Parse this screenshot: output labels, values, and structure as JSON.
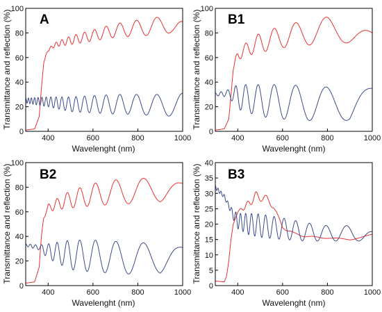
{
  "chart_data": [
    {
      "type": "line",
      "panel_label": "A",
      "xlabel": "Wavelenght (nm)",
      "ylabel": "Transmittance and reflection (%)",
      "xlim": [
        300,
        1000
      ],
      "ylim": [
        0,
        100
      ],
      "xticks": [
        400,
        600,
        800,
        1000
      ],
      "yticks": [
        0,
        20,
        40,
        60,
        80,
        100
      ],
      "colors": {
        "transmittance": "#e8312f",
        "reflection": "#3b4a8a"
      },
      "series": [
        {
          "key": "transmittance",
          "x": [
            300,
            340,
            360,
            370,
            380,
            390,
            400,
            420,
            440,
            460,
            480,
            500,
            550,
            600,
            650,
            700,
            750,
            800,
            850,
            900,
            950,
            1000
          ],
          "y": [
            1,
            2,
            12,
            35,
            55,
            62,
            66,
            69,
            71,
            72,
            73,
            74,
            76,
            78,
            80,
            82,
            83,
            84,
            85,
            86,
            87,
            82
          ],
          "osc_amp": [
            0,
            0,
            0,
            0,
            0,
            0,
            1,
            1.5,
            2,
            2.5,
            3,
            3.5,
            4,
            4.5,
            5,
            5.5,
            6,
            6.5,
            7,
            7,
            7,
            7
          ],
          "osc_periods": 18
        },
        {
          "key": "reflection",
          "x": [
            300,
            400,
            500,
            600,
            700,
            800,
            900,
            1000
          ],
          "y": [
            25,
            24,
            22,
            22,
            22,
            22,
            21,
            22
          ],
          "osc_amp": [
            2,
            4,
            6,
            7,
            8,
            8,
            9,
            9
          ],
          "osc_periods": 18
        }
      ]
    },
    {
      "type": "line",
      "panel_label": "B1",
      "xlabel": "Wavelenght (nm)",
      "ylabel": "Transmittance and reflection (%)",
      "xlim": [
        300,
        1000
      ],
      "ylim": [
        0,
        100
      ],
      "xticks": [
        400,
        600,
        800,
        1000
      ],
      "yticks": [
        0,
        20,
        40,
        60,
        80,
        100
      ],
      "colors": {
        "transmittance": "#e8312f",
        "reflection": "#3b4a8a"
      },
      "series": [
        {
          "key": "transmittance",
          "x": [
            300,
            340,
            360,
            370,
            380,
            390,
            400,
            450,
            500,
            600,
            700,
            800,
            900,
            1000
          ],
          "y": [
            1,
            2,
            10,
            30,
            50,
            58,
            62,
            68,
            72,
            77,
            80,
            82,
            82,
            76
          ],
          "osc_amp": [
            0,
            0,
            0,
            0,
            0,
            2,
            4,
            6,
            8,
            9,
            10,
            11,
            10,
            4
          ],
          "osc_periods": 9
        },
        {
          "key": "reflection",
          "x": [
            300,
            360,
            400,
            500,
            600,
            700,
            800,
            900,
            1000
          ],
          "y": [
            30,
            31,
            28,
            25,
            24,
            23,
            22,
            22,
            33
          ],
          "osc_amp": [
            1,
            3,
            10,
            13,
            14,
            14,
            14,
            13,
            2
          ],
          "osc_periods": 9
        }
      ]
    },
    {
      "type": "line",
      "panel_label": "B2",
      "xlabel": "Wavelenght (nm)",
      "ylabel": "Transmittance and reflection (%)",
      "xlim": [
        300,
        1000
      ],
      "ylim": [
        0,
        100
      ],
      "xticks": [
        400,
        600,
        800,
        1000
      ],
      "yticks": [
        0,
        20,
        40,
        60,
        80,
        100
      ],
      "colors": {
        "transmittance": "#e8312f",
        "reflection": "#3b4a8a"
      },
      "series": [
        {
          "key": "transmittance",
          "x": [
            300,
            340,
            360,
            370,
            380,
            390,
            400,
            450,
            500,
            600,
            700,
            800,
            900,
            1000
          ],
          "y": [
            2,
            3,
            15,
            40,
            55,
            60,
            63,
            67,
            70,
            74,
            76,
            77,
            78,
            82
          ],
          "osc_amp": [
            0,
            0,
            0,
            0,
            1,
            2,
            3,
            5,
            7,
            9,
            10,
            10,
            10,
            1
          ],
          "osc_periods": 11
        },
        {
          "key": "reflection",
          "x": [
            300,
            360,
            400,
            500,
            600,
            700,
            800,
            900,
            1000
          ],
          "y": [
            33,
            31,
            28,
            25,
            24,
            23,
            22,
            22,
            30
          ],
          "osc_amp": [
            1,
            2,
            6,
            12,
            13,
            13,
            13,
            12,
            1
          ],
          "osc_periods": 11
        }
      ]
    },
    {
      "type": "line",
      "panel_label": "B3",
      "xlabel": "Wavelenght (nm)",
      "ylabel": "Transmittance and reflection (%)",
      "xlim": [
        300,
        1000
      ],
      "ylim": [
        0,
        40
      ],
      "xticks": [
        400,
        600,
        800,
        1000
      ],
      "yticks": [
        0,
        5,
        10,
        15,
        20,
        25,
        30,
        35,
        40
      ],
      "colors": {
        "transmittance": "#e8312f",
        "reflection": "#3b4a8a"
      },
      "series": [
        {
          "key": "transmittance",
          "x": [
            300,
            340,
            350,
            360,
            370,
            380,
            390,
            400,
            430,
            460,
            480,
            500,
            530,
            560,
            580,
            600,
            650,
            700,
            800,
            900,
            1000
          ],
          "y": [
            1.5,
            1.2,
            3,
            8,
            15,
            20,
            22,
            24,
            25.5,
            27.5,
            29,
            29,
            28,
            26,
            22,
            19,
            17,
            16,
            15.5,
            15,
            16.5
          ],
          "osc_amp": [
            0,
            0,
            0,
            0,
            0,
            0,
            0,
            0.3,
            0.8,
            1.2,
            1.5,
            1.5,
            1.2,
            1,
            0.8,
            0.5,
            0.3,
            0.2,
            0.2,
            0.2,
            0.2
          ],
          "osc_periods": 13
        },
        {
          "key": "reflection",
          "x": [
            300,
            320,
            340,
            360,
            380,
            400,
            450,
            500,
            600,
            700,
            800,
            900,
            1000
          ],
          "y": [
            32,
            30.5,
            29,
            26,
            23,
            21,
            20,
            19.5,
            18.5,
            17.5,
            17,
            17,
            16
          ],
          "osc_amp": [
            0.6,
            0.6,
            0.6,
            0.8,
            1.5,
            2.5,
            3.5,
            3.8,
            3.5,
            3,
            2.5,
            2.5,
            1.5
          ],
          "osc_periods": 18
        }
      ]
    }
  ]
}
